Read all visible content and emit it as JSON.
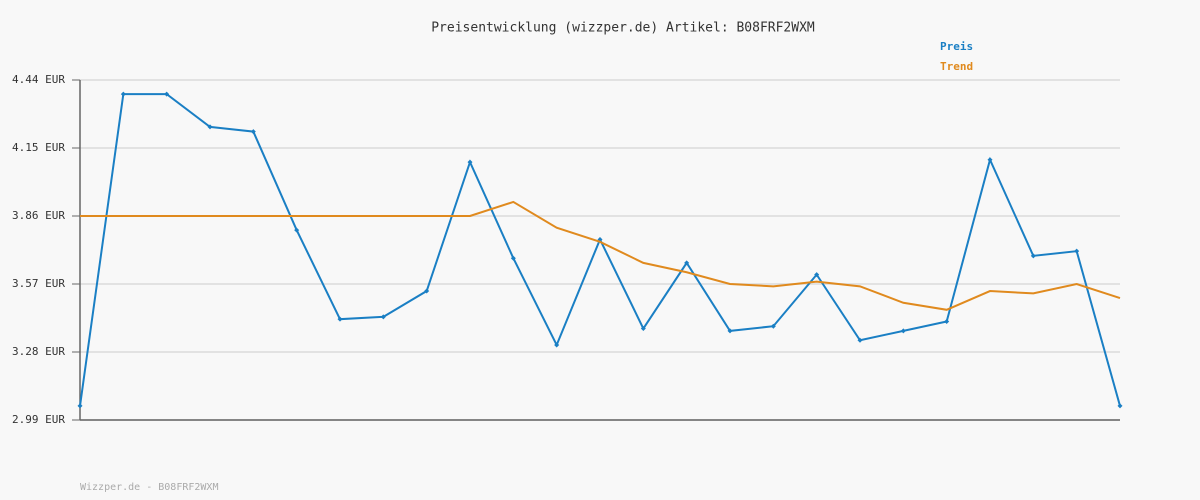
{
  "chart_data": {
    "type": "line",
    "title": "Preisentwicklung (wizzper.de) Artikel: B08FRF2WXM",
    "footer": "Wizzper.de - B08FRF2WXM",
    "categories": [
      null,
      null,
      null,
      null,
      null,
      null,
      null,
      null,
      null,
      null,
      null,
      null,
      null,
      null,
      null,
      null,
      null,
      null,
      null,
      null,
      null,
      null,
      null,
      null,
      null
    ],
    "series": [
      {
        "name": "Preis",
        "color": "#1a7fc4",
        "markers": true,
        "values": [
          3.05,
          4.38,
          4.38,
          4.24,
          4.22,
          3.8,
          3.42,
          3.43,
          3.54,
          4.09,
          3.68,
          3.31,
          3.76,
          3.38,
          3.66,
          3.37,
          3.39,
          3.61,
          3.33,
          3.37,
          3.41,
          4.1,
          3.69,
          3.71,
          3.05
        ]
      },
      {
        "name": "Trend",
        "color": "#e08a1e",
        "markers": false,
        "values": [
          3.86,
          3.86,
          3.86,
          3.86,
          3.86,
          3.86,
          3.86,
          3.86,
          3.86,
          3.86,
          3.92,
          3.81,
          3.75,
          3.66,
          3.62,
          3.57,
          3.56,
          3.58,
          3.56,
          3.49,
          3.46,
          3.54,
          3.53,
          3.57,
          3.51
        ]
      }
    ],
    "ylim": [
      2.99,
      4.44
    ],
    "yticks": [
      {
        "value": 2.99,
        "label": "2.99 EUR"
      },
      {
        "value": 3.28,
        "label": "3.28 EUR"
      },
      {
        "value": 3.57,
        "label": "3.57 EUR"
      },
      {
        "value": 3.86,
        "label": "3.86 EUR"
      },
      {
        "value": 4.15,
        "label": "4.15 EUR"
      },
      {
        "value": 4.44,
        "label": "4.44 EUR"
      }
    ],
    "grid": true,
    "legend": "top-right"
  }
}
